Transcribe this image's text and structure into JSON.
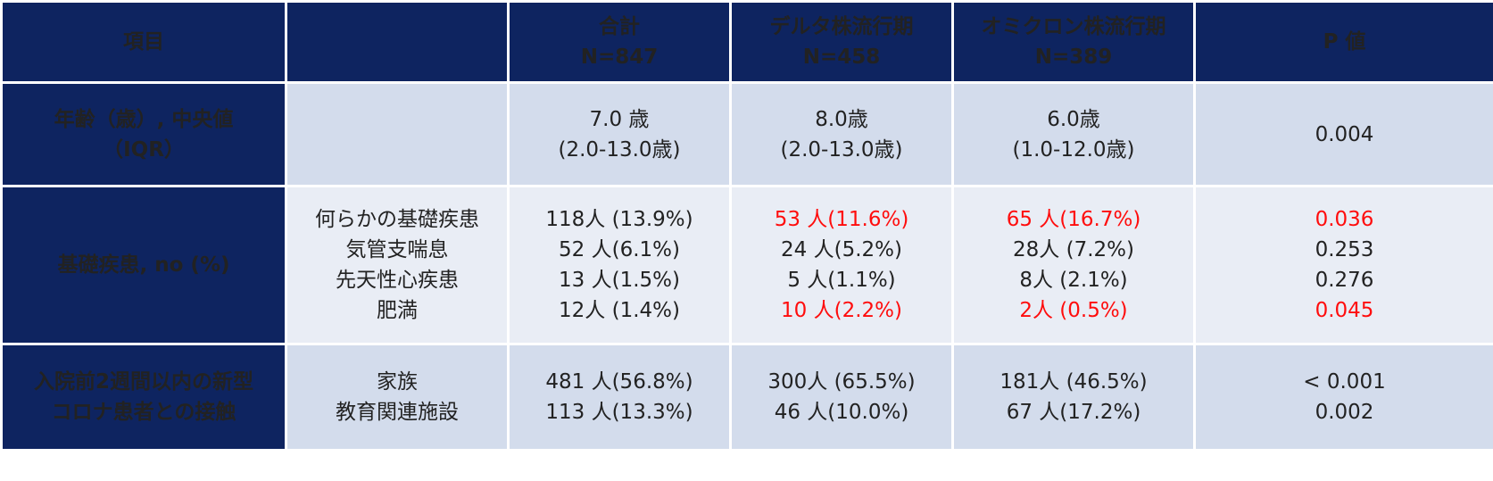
{
  "header": {
    "item": "項目",
    "sub": "",
    "total": {
      "label": "合計",
      "n": "N=847"
    },
    "delta": {
      "label": "デルタ株流行期",
      "n": "N=458"
    },
    "omicron": {
      "label": "オミクロン株流行期",
      "n": "N=389"
    },
    "p": "P 値"
  },
  "rows": [
    {
      "item_lines": [
        "年齢（歳）, 中央値",
        "（IQR）"
      ],
      "sub_lines": [],
      "total_lines": [
        "7.0 歳",
        "(2.0-13.0歳)"
      ],
      "delta_lines": [
        "8.0歳",
        "(2.0-13.0歳)"
      ],
      "omicron_lines": [
        "6.0歳",
        "(1.0-12.0歳)"
      ],
      "p_lines": [
        "0.004"
      ]
    },
    {
      "item_lines": [
        "基礎疾患, no (%)"
      ],
      "sub_lines": [
        "何らかの基礎疾患",
        "気管支喘息",
        "先天性心疾患",
        "肥満"
      ],
      "total_lines": [
        "118人 (13.9%)",
        "52 人(6.1%)",
        "13 人(1.5%)",
        "12人 (1.4%)"
      ],
      "delta_lines": [
        "53 人(11.6%)",
        "24 人(5.2%)",
        "5 人(1.1%)",
        "10 人(2.2%)"
      ],
      "omicron_lines": [
        "65 人(16.7%)",
        "28人 (7.2%)",
        "8人 (2.1%)",
        "2人 (0.5%)"
      ],
      "p_lines": [
        "0.036",
        "0.253",
        "0.276",
        "0.045"
      ]
    },
    {
      "item_lines": [
        "入院前2週間以内の新型",
        "コロナ患者との接触"
      ],
      "sub_lines": [
        "家族",
        "教育関連施設"
      ],
      "total_lines": [
        "481 人(56.8%)",
        "113 人(13.3%)"
      ],
      "delta_lines": [
        "300人 (65.5%)",
        "46 人(10.0%)"
      ],
      "omicron_lines": [
        "181人 (46.5%)",
        "67 人(17.2%)"
      ],
      "p_lines": [
        "< 0.001",
        "0.002"
      ]
    }
  ],
  "colors": {
    "header_bg": "#0e2460",
    "row_light": "#d3dcec",
    "row_lighter": "#e9edf5",
    "significant_red": "#ff0d0d",
    "text": "#222222"
  }
}
